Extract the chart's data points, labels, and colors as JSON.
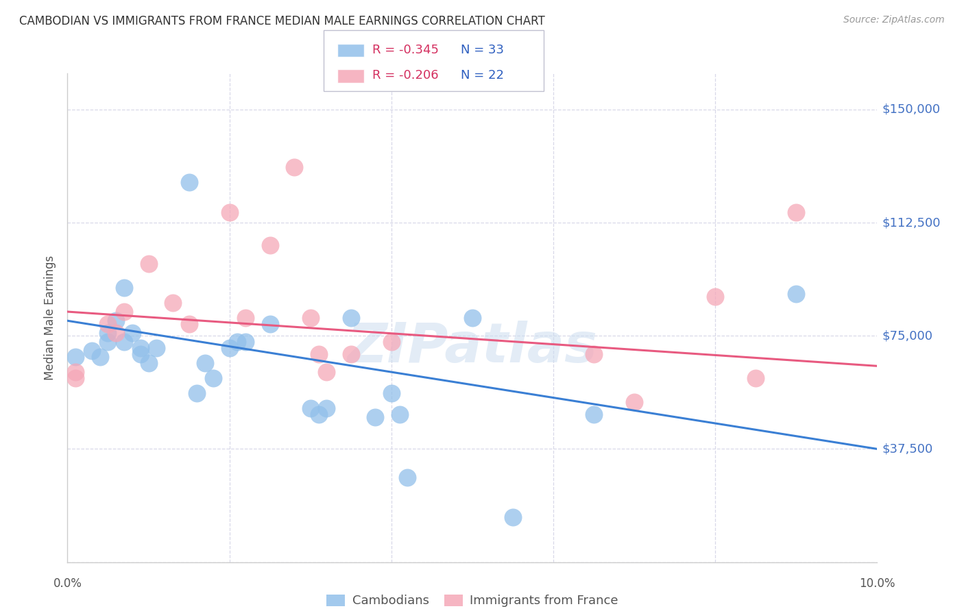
{
  "title": "CAMBODIAN VS IMMIGRANTS FROM FRANCE MEDIAN MALE EARNINGS CORRELATION CHART",
  "source": "Source: ZipAtlas.com",
  "ylabel": "Median Male Earnings",
  "watermark": "ZIPatlas",
  "y_ticks": [
    0,
    37500,
    75000,
    112500,
    150000
  ],
  "y_tick_labels": [
    "",
    "$37,500",
    "$75,000",
    "$112,500",
    "$150,000"
  ],
  "x_range": [
    0.0,
    0.1
  ],
  "y_range": [
    0,
    162000
  ],
  "legend_r1": "R = -0.345",
  "legend_n1": "N = 33",
  "legend_r2": "R = -0.206",
  "legend_n2": "N = 22",
  "cambodian_color": "#92c0ea",
  "france_color": "#f5a8b8",
  "cambodian_line_color": "#3a7fd4",
  "france_line_color": "#e85a80",
  "cambodian_points": [
    [
      0.001,
      68000
    ],
    [
      0.003,
      70000
    ],
    [
      0.004,
      68000
    ],
    [
      0.005,
      73000
    ],
    [
      0.005,
      76000
    ],
    [
      0.006,
      80000
    ],
    [
      0.007,
      73000
    ],
    [
      0.007,
      91000
    ],
    [
      0.008,
      76000
    ],
    [
      0.009,
      69000
    ],
    [
      0.009,
      71000
    ],
    [
      0.01,
      66000
    ],
    [
      0.011,
      71000
    ],
    [
      0.015,
      126000
    ],
    [
      0.016,
      56000
    ],
    [
      0.017,
      66000
    ],
    [
      0.018,
      61000
    ],
    [
      0.02,
      71000
    ],
    [
      0.021,
      73000
    ],
    [
      0.022,
      73000
    ],
    [
      0.025,
      79000
    ],
    [
      0.03,
      51000
    ],
    [
      0.031,
      49000
    ],
    [
      0.032,
      51000
    ],
    [
      0.035,
      81000
    ],
    [
      0.038,
      48000
    ],
    [
      0.04,
      56000
    ],
    [
      0.041,
      49000
    ],
    [
      0.042,
      28000
    ],
    [
      0.05,
      81000
    ],
    [
      0.055,
      15000
    ],
    [
      0.065,
      49000
    ],
    [
      0.09,
      89000
    ]
  ],
  "france_points": [
    [
      0.001,
      63000
    ],
    [
      0.001,
      61000
    ],
    [
      0.005,
      79000
    ],
    [
      0.006,
      76000
    ],
    [
      0.007,
      83000
    ],
    [
      0.01,
      99000
    ],
    [
      0.013,
      86000
    ],
    [
      0.015,
      79000
    ],
    [
      0.02,
      116000
    ],
    [
      0.022,
      81000
    ],
    [
      0.025,
      105000
    ],
    [
      0.028,
      131000
    ],
    [
      0.03,
      81000
    ],
    [
      0.031,
      69000
    ],
    [
      0.032,
      63000
    ],
    [
      0.035,
      69000
    ],
    [
      0.04,
      73000
    ],
    [
      0.065,
      69000
    ],
    [
      0.07,
      53000
    ],
    [
      0.08,
      88000
    ],
    [
      0.085,
      61000
    ],
    [
      0.09,
      116000
    ]
  ],
  "cambodian_trendline": [
    [
      0.0,
      80000
    ],
    [
      0.1,
      37500
    ]
  ],
  "france_trendline": [
    [
      0.0,
      83000
    ],
    [
      0.1,
      65000
    ]
  ],
  "background_color": "#ffffff",
  "grid_color": "#d8d8e8",
  "title_color": "#333333",
  "ytick_color": "#4472c4",
  "source_color": "#999999",
  "label_color": "#555555"
}
